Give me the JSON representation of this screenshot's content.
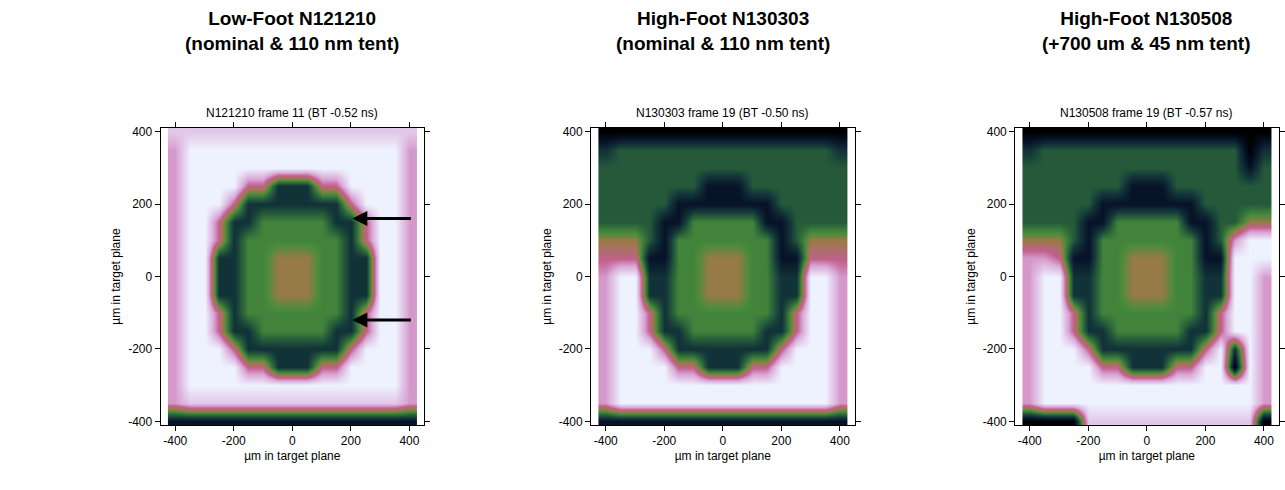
{
  "chart_data": [
    {
      "type": "heatmap",
      "title": "Low-Foot N121210 (nominal & 110 nm tent)",
      "subtitle": "N121210 frame 11 (BT -0.52 ns)",
      "x_label": "µm in target plane",
      "y_label": "µm in target plane",
      "xlim": [
        -450,
        450
      ],
      "ylim": [
        -410,
        410
      ],
      "xticks": [
        -400,
        -200,
        0,
        200,
        400
      ],
      "yticks": [
        -400,
        -200,
        0,
        200,
        400
      ],
      "zlim": [
        0,
        9
      ],
      "x": [
        -400,
        -350,
        -300,
        -250,
        -200,
        -150,
        -100,
        -50,
        0,
        50,
        100,
        150,
        200,
        250,
        300,
        350,
        400
      ],
      "y": [
        -400,
        -350,
        -300,
        -250,
        -200,
        -150,
        -100,
        -50,
        0,
        50,
        100,
        150,
        200,
        250,
        300,
        350,
        400
      ],
      "z": [
        [
          1,
          1,
          1,
          1,
          1,
          1,
          1,
          1,
          1,
          1,
          1,
          1,
          1,
          1,
          1,
          1,
          1
        ],
        [
          7,
          8,
          8,
          8,
          8,
          8,
          8,
          8,
          8,
          8,
          8,
          8,
          8,
          8,
          8,
          8,
          7
        ],
        [
          7,
          9,
          9,
          9,
          9,
          9,
          9,
          9,
          9,
          9,
          9,
          9,
          9,
          9,
          9,
          9,
          7
        ],
        [
          7,
          9,
          9,
          9,
          9,
          6,
          6,
          2,
          2,
          2,
          6,
          6,
          9,
          9,
          9,
          9,
          7
        ],
        [
          7,
          9,
          9,
          9,
          6,
          2,
          2,
          2,
          2,
          2,
          2,
          2,
          6,
          9,
          9,
          9,
          7
        ],
        [
          7,
          9,
          9,
          6,
          2,
          2,
          4,
          4,
          4,
          4,
          4,
          2,
          2,
          6,
          9,
          9,
          7
        ],
        [
          7,
          9,
          9,
          6,
          2,
          4,
          4,
          4,
          4,
          4,
          4,
          4,
          2,
          6,
          9,
          9,
          7
        ],
        [
          7,
          9,
          9,
          2,
          2,
          4,
          4,
          5,
          5,
          5,
          4,
          4,
          2,
          2,
          9,
          9,
          7
        ],
        [
          7,
          9,
          9,
          2,
          2,
          4,
          4,
          5,
          5,
          5,
          4,
          4,
          2,
          2,
          9,
          9,
          7
        ],
        [
          7,
          9,
          9,
          2,
          2,
          4,
          4,
          5,
          5,
          5,
          4,
          4,
          2,
          2,
          9,
          9,
          7
        ],
        [
          7,
          9,
          9,
          6,
          2,
          4,
          4,
          4,
          4,
          4,
          4,
          4,
          2,
          6,
          9,
          9,
          7
        ],
        [
          7,
          9,
          9,
          6,
          2,
          2,
          4,
          4,
          4,
          4,
          4,
          2,
          2,
          6,
          9,
          9,
          7
        ],
        [
          7,
          9,
          9,
          9,
          6,
          2,
          2,
          2,
          2,
          2,
          2,
          2,
          6,
          9,
          9,
          9,
          7
        ],
        [
          7,
          9,
          9,
          9,
          9,
          6,
          6,
          2,
          2,
          2,
          6,
          6,
          9,
          9,
          9,
          9,
          7
        ],
        [
          7,
          9,
          9,
          9,
          9,
          9,
          9,
          9,
          9,
          9,
          9,
          9,
          9,
          9,
          9,
          9,
          7
        ],
        [
          7,
          9,
          9,
          9,
          9,
          9,
          9,
          9,
          9,
          9,
          9,
          9,
          9,
          9,
          9,
          9,
          7
        ],
        [
          8,
          8,
          8,
          8,
          8,
          8,
          8,
          8,
          8,
          8,
          8,
          8,
          8,
          8,
          8,
          8,
          8
        ]
      ]
    },
    {
      "type": "heatmap",
      "title": "High-Foot N130303 (nominal & 110 nm tent)",
      "subtitle": "N130303 frame 19 (BT -0.50 ns)",
      "x_label": "µm in target plane",
      "y_label": "µm in target plane",
      "xlim": [
        -450,
        450
      ],
      "ylim": [
        -410,
        410
      ],
      "xticks": [
        -400,
        -200,
        0,
        200,
        400
      ],
      "yticks": [
        -400,
        -200,
        0,
        200,
        400
      ],
      "zlim": [
        0,
        9
      ],
      "x": [
        -400,
        -350,
        -300,
        -250,
        -200,
        -150,
        -100,
        -50,
        0,
        50,
        100,
        150,
        200,
        250,
        300,
        350,
        400
      ],
      "y": [
        -400,
        -350,
        -300,
        -250,
        -200,
        -150,
        -100,
        -50,
        0,
        50,
        100,
        150,
        200,
        250,
        300,
        350,
        400
      ],
      "z": [
        [
          1,
          1,
          1,
          1,
          1,
          1,
          1,
          1,
          1,
          1,
          1,
          1,
          1,
          1,
          1,
          1,
          1
        ],
        [
          7,
          9,
          9,
          9,
          9,
          9,
          9,
          9,
          9,
          9,
          9,
          9,
          9,
          9,
          9,
          9,
          7
        ],
        [
          7,
          9,
          9,
          9,
          9,
          9,
          9,
          9,
          9,
          9,
          9,
          9,
          9,
          9,
          9,
          9,
          7
        ],
        [
          7,
          9,
          9,
          9,
          9,
          6,
          6,
          2,
          2,
          2,
          6,
          6,
          9,
          9,
          9,
          9,
          7
        ],
        [
          7,
          9,
          9,
          9,
          6,
          2,
          2,
          2,
          2,
          2,
          2,
          2,
          6,
          9,
          9,
          9,
          7
        ],
        [
          7,
          9,
          9,
          6,
          2,
          2,
          4,
          4,
          4,
          4,
          4,
          2,
          2,
          6,
          9,
          9,
          7
        ],
        [
          7,
          9,
          9,
          6,
          2,
          4,
          4,
          4,
          4,
          4,
          4,
          4,
          2,
          6,
          9,
          9,
          7
        ],
        [
          7,
          9,
          9,
          2,
          2,
          4,
          4,
          5,
          5,
          5,
          4,
          4,
          2,
          2,
          9,
          9,
          7
        ],
        [
          7,
          9,
          9,
          2,
          2,
          4,
          4,
          5,
          5,
          5,
          4,
          4,
          2,
          2,
          9,
          9,
          7
        ],
        [
          6,
          6,
          6,
          1,
          1,
          4,
          4,
          5,
          5,
          5,
          4,
          4,
          1,
          1,
          6,
          6,
          6
        ],
        [
          5,
          5,
          5,
          3,
          1,
          4,
          4,
          4,
          4,
          4,
          4,
          4,
          1,
          3,
          5,
          5,
          5
        ],
        [
          3,
          3,
          3,
          3,
          1,
          1,
          4,
          4,
          4,
          4,
          4,
          1,
          1,
          3,
          3,
          3,
          3
        ],
        [
          3,
          3,
          3,
          3,
          3,
          1,
          1,
          1,
          1,
          1,
          1,
          1,
          3,
          3,
          3,
          3,
          3
        ],
        [
          3,
          3,
          3,
          3,
          3,
          3,
          3,
          1,
          1,
          1,
          3,
          3,
          3,
          3,
          3,
          3,
          3
        ],
        [
          3,
          3,
          3,
          3,
          3,
          3,
          3,
          3,
          3,
          3,
          3,
          3,
          3,
          3,
          3,
          3,
          3
        ],
        [
          2,
          3,
          3,
          3,
          3,
          3,
          3,
          3,
          3,
          3,
          3,
          3,
          3,
          3,
          3,
          3,
          2
        ],
        [
          0,
          0,
          0,
          0,
          0,
          0,
          0,
          0,
          0,
          0,
          0,
          0,
          0,
          0,
          0,
          0,
          0
        ]
      ]
    },
    {
      "type": "heatmap",
      "title": "High-Foot N130508 (+700 um & 45 nm tent)",
      "subtitle": "N130508 frame 19 (BT -0.57 ns)",
      "x_label": "µm in target plane",
      "y_label": "µm in target plane",
      "xlim": [
        -450,
        450
      ],
      "ylim": [
        -410,
        410
      ],
      "xticks": [
        -400,
        -200,
        0,
        200,
        400
      ],
      "yticks": [
        -400,
        -200,
        0,
        200,
        400
      ],
      "zlim": [
        0,
        9
      ],
      "x": [
        -400,
        -350,
        -300,
        -250,
        -200,
        -150,
        -100,
        -50,
        0,
        50,
        100,
        150,
        200,
        250,
        300,
        350,
        400
      ],
      "y": [
        -400,
        -350,
        -300,
        -250,
        -200,
        -150,
        -100,
        -50,
        0,
        50,
        100,
        150,
        200,
        250,
        300,
        350,
        400
      ],
      "z": [
        [
          0,
          0,
          0,
          0,
          8,
          8,
          8,
          8,
          8,
          8,
          8,
          8,
          8,
          8,
          8,
          8,
          0
        ],
        [
          7,
          9,
          9,
          9,
          9,
          9,
          9,
          9,
          9,
          9,
          9,
          9,
          9,
          9,
          9,
          9,
          7
        ],
        [
          7,
          9,
          9,
          9,
          9,
          9,
          9,
          9,
          9,
          9,
          9,
          9,
          9,
          9,
          9,
          9,
          7
        ],
        [
          7,
          9,
          9,
          9,
          9,
          6,
          6,
          2,
          2,
          2,
          6,
          6,
          9,
          9,
          0,
          9,
          7
        ],
        [
          7,
          9,
          9,
          9,
          6,
          2,
          2,
          2,
          2,
          2,
          2,
          2,
          6,
          9,
          2,
          9,
          7
        ],
        [
          7,
          9,
          9,
          6,
          2,
          2,
          4,
          4,
          4,
          4,
          4,
          2,
          2,
          6,
          9,
          9,
          7
        ],
        [
          7,
          9,
          9,
          6,
          2,
          4,
          4,
          4,
          4,
          4,
          4,
          4,
          2,
          6,
          9,
          9,
          7
        ],
        [
          7,
          9,
          9,
          2,
          2,
          4,
          4,
          5,
          5,
          5,
          4,
          4,
          2,
          2,
          9,
          9,
          7
        ],
        [
          7,
          9,
          9,
          2,
          2,
          4,
          4,
          5,
          5,
          5,
          4,
          4,
          2,
          2,
          9,
          9,
          7
        ],
        [
          7,
          7,
          6,
          1,
          1,
          4,
          4,
          5,
          5,
          5,
          4,
          4,
          1,
          1,
          9,
          9,
          9
        ],
        [
          5,
          5,
          5,
          3,
          1,
          4,
          4,
          4,
          4,
          4,
          4,
          4,
          1,
          3,
          7,
          9,
          9
        ],
        [
          3,
          3,
          3,
          3,
          1,
          1,
          4,
          4,
          4,
          4,
          4,
          1,
          1,
          3,
          3,
          5,
          5
        ],
        [
          3,
          3,
          3,
          3,
          3,
          1,
          1,
          1,
          1,
          1,
          1,
          1,
          3,
          3,
          3,
          3,
          3
        ],
        [
          3,
          3,
          3,
          3,
          3,
          3,
          3,
          1,
          1,
          1,
          3,
          3,
          3,
          3,
          3,
          3,
          3
        ],
        [
          3,
          3,
          3,
          3,
          3,
          3,
          3,
          3,
          3,
          3,
          3,
          3,
          3,
          3,
          3,
          1,
          3
        ],
        [
          2,
          3,
          3,
          3,
          3,
          3,
          3,
          3,
          3,
          3,
          3,
          3,
          3,
          3,
          3,
          0,
          2
        ],
        [
          0,
          0,
          0,
          0,
          0,
          0,
          0,
          0,
          0,
          0,
          0,
          0,
          0,
          0,
          0,
          0,
          0
        ]
      ]
    }
  ]
}
